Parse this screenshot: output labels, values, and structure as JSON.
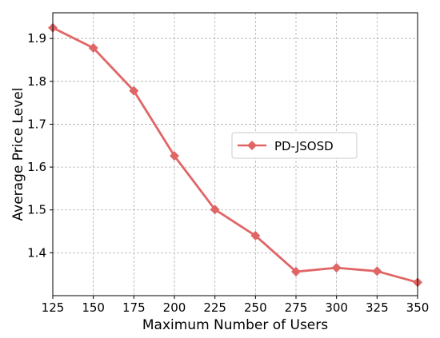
{
  "chart_data": {
    "type": "line",
    "xlabel": "Maximum Number of Users",
    "ylabel": "Average Price Level",
    "x": [
      125,
      150,
      175,
      200,
      225,
      250,
      275,
      300,
      325,
      350
    ],
    "xticks": [
      "125",
      "150",
      "175",
      "200",
      "225",
      "250",
      "275",
      "300",
      "325",
      "350"
    ],
    "yticks": [
      "1.4",
      "1.5",
      "1.6",
      "1.7",
      "1.8",
      "1.9"
    ],
    "ytick_values": [
      1.4,
      1.5,
      1.6,
      1.7,
      1.8,
      1.9
    ],
    "xlim": [
      125,
      350
    ],
    "ylim": [
      1.3,
      1.96
    ],
    "grid": true,
    "legend_position": "center-right",
    "series": [
      {
        "name": "PD-JSOSD",
        "color": "#e06666",
        "marker": "diamond",
        "values": [
          1.925,
          1.878,
          1.778,
          1.626,
          1.501,
          1.44,
          1.356,
          1.365,
          1.357,
          1.331
        ]
      }
    ]
  }
}
